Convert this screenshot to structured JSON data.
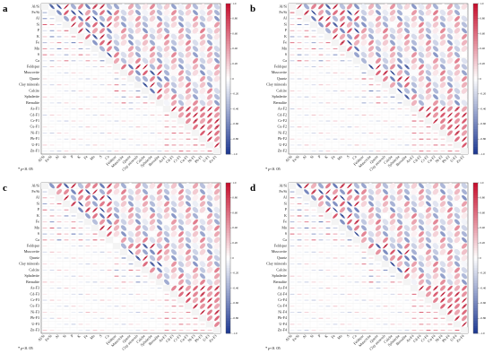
{
  "chart_data": [
    {
      "panel": "a",
      "type": "heatmap",
      "variables": [
        "Al/Si",
        "Fe/Si",
        "Al",
        "Si",
        "P",
        "K",
        "Fe",
        "Mn",
        "S",
        "Ca",
        "Feldspar",
        "Muscovite",
        "Quartz",
        "Clay minerals",
        "Calcite",
        "Sphalerite",
        "Bernalite",
        "As-F1",
        "Cd-F1",
        "Cr-F1",
        "Cu-F1",
        "Ni-F1",
        "Pb-F1",
        "U-F1",
        "Zn-F1"
      ],
      "color_scale": {
        "min": -1.0,
        "max": 1.0,
        "ticks": [
          "1.0",
          "0.80",
          "0.60",
          "0.40",
          "0.20",
          "0",
          "-0.20",
          "-0.40",
          "-0.60",
          "-0.80",
          "-1.0"
        ]
      },
      "significance_note": {
        "prefix": "*",
        "p": "p",
        "rest": "<0. 05"
      }
    },
    {
      "panel": "b",
      "type": "heatmap",
      "variables": [
        "Al/Si",
        "Fe/Si",
        "Al",
        "Si",
        "P",
        "K",
        "Fe",
        "Mn",
        "S",
        "Ca",
        "Feldspar",
        "Muscovite",
        "Quartz",
        "Clay minerals",
        "Calcite",
        "Sphalerite",
        "Bernalite",
        "As-F2",
        "Cd-F2",
        "Cr-F2",
        "Cu-F2",
        "Ni-F2",
        "Pb-F2",
        "U-F2",
        "Zn-F2"
      ],
      "color_scale": {
        "min": -1.0,
        "max": 1.0,
        "ticks": [
          "1.0",
          "0.80",
          "0.60",
          "0.40",
          "0.20",
          "0",
          "-0.20",
          "-0.40",
          "-0.60",
          "-0.80",
          "-1.0"
        ]
      },
      "significance_note": {
        "prefix": "*",
        "p": "p",
        "rest": "<0. 05"
      }
    },
    {
      "panel": "c",
      "type": "heatmap",
      "variables": [
        "Al/Si",
        "Fe/Si",
        "Al",
        "Si",
        "P",
        "K",
        "Fe",
        "Mn",
        "S",
        "Ca",
        "Feldspar",
        "Muscovite",
        "Quartz",
        "Clay minerals",
        "Calcite",
        "Sphalerite",
        "Bernalite",
        "As-F3",
        "Cd-F3",
        "Cr-F3",
        "Cu-F3",
        "Ni-F3",
        "Pb-F3",
        "U-F3",
        "Zn-F3"
      ],
      "color_scale": {
        "min": -1.0,
        "max": 1.0,
        "ticks": [
          "1.0",
          "0.80",
          "0.60",
          "0.40",
          "0.20",
          "0",
          "-0.20",
          "-0.40",
          "-0.60",
          "-0.80",
          "-1.0"
        ]
      },
      "significance_note": {
        "prefix": "*",
        "p": "p",
        "rest": "<0. 05"
      }
    },
    {
      "panel": "d",
      "type": "heatmap",
      "variables": [
        "Al/Si",
        "Fe/Si",
        "Al",
        "Si",
        "P",
        "K",
        "Fe",
        "Mn",
        "S",
        "Ca",
        "Feldspar",
        "Muscovite",
        "Quartz",
        "Clay minerals",
        "Calcite",
        "Sphalerite",
        "Bernalite",
        "As-F4",
        "Cd-F4",
        "Cr-F4",
        "Cu-F4",
        "Ni-F4",
        "Pb-F4",
        "U-F4",
        "Zn-F4"
      ],
      "color_scale": {
        "min": -1.0,
        "max": 1.0,
        "ticks": [
          "1.0",
          "0.80",
          "0.60",
          "0.40",
          "0.20",
          "0",
          "-0.20",
          "-0.40",
          "-0.60",
          "-0.80",
          "-1.0"
        ]
      },
      "significance_note": {
        "prefix": "*",
        "p": "p",
        "rest": "<0. 05"
      }
    }
  ],
  "colors": {
    "positive": "#c8102e",
    "neutral": "#ffffff",
    "negative": "#1f3a93"
  }
}
